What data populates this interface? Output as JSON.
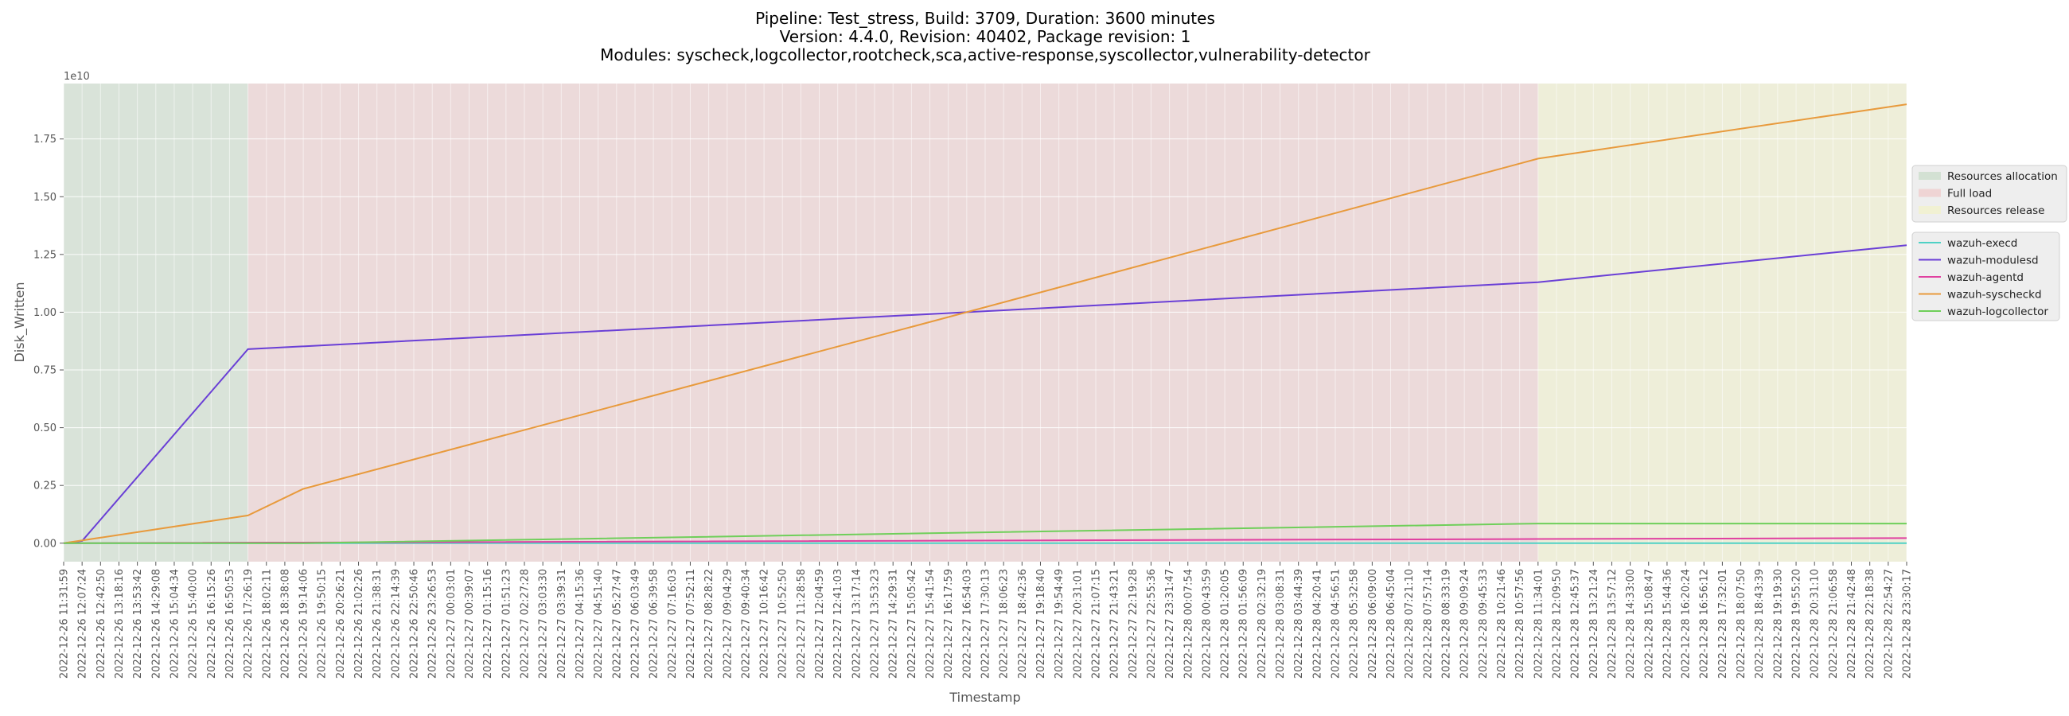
{
  "chart_data": {
    "type": "line",
    "title_lines": [
      "Pipeline: Test_stress, Build: 3709, Duration: 3600 minutes",
      "Version: 4.4.0, Revision: 40402, Package revision: 1",
      "Modules: syscheck,logcollector,rootcheck,sca,active-response,syscollector,vulnerability-detector"
    ],
    "xlabel": "Timestamp",
    "ylabel": "Disk_Written",
    "y_offset_label": "1e10",
    "ylim": [
      -0.08,
      1.99
    ],
    "y_ticks": [
      0.0,
      0.25,
      0.5,
      0.75,
      1.0,
      1.25,
      1.5,
      1.75
    ],
    "y_tick_labels": [
      "0.00",
      "0.25",
      "0.50",
      "0.75",
      "1.00",
      "1.25",
      "1.50",
      "1.75"
    ],
    "y_unit_scale": "1e10",
    "grid": true,
    "legend_placement": "right",
    "x_categories": [
      "2022-12-26 11:31:59",
      "2022-12-26 12:07:24",
      "2022-12-26 12:42:50",
      "2022-12-26 13:18:16",
      "2022-12-26 13:53:42",
      "2022-12-26 14:29:08",
      "2022-12-26 15:04:34",
      "2022-12-26 15:40:00",
      "2022-12-26 16:15:26",
      "2022-12-26 16:50:53",
      "2022-12-26 17:26:19",
      "2022-12-26 18:02:11",
      "2022-12-26 18:38:08",
      "2022-12-26 19:14:06",
      "2022-12-26 19:50:15",
      "2022-12-26 20:26:21",
      "2022-12-26 21:02:26",
      "2022-12-26 21:38:31",
      "2022-12-26 22:14:39",
      "2022-12-26 22:50:46",
      "2022-12-26 23:26:53",
      "2022-12-27 00:03:01",
      "2022-12-27 00:39:07",
      "2022-12-27 01:15:16",
      "2022-12-27 01:51:23",
      "2022-12-27 02:27:28",
      "2022-12-27 03:03:30",
      "2022-12-27 03:39:31",
      "2022-12-27 04:15:36",
      "2022-12-27 04:51:40",
      "2022-12-27 05:27:47",
      "2022-12-27 06:03:49",
      "2022-12-27 06:39:58",
      "2022-12-27 07:16:03",
      "2022-12-27 07:52:11",
      "2022-12-27 08:28:22",
      "2022-12-27 09:04:29",
      "2022-12-27 09:40:34",
      "2022-12-27 10:16:42",
      "2022-12-27 10:52:50",
      "2022-12-27 11:28:58",
      "2022-12-27 12:04:59",
      "2022-12-27 12:41:03",
      "2022-12-27 13:17:14",
      "2022-12-27 13:53:23",
      "2022-12-27 14:29:31",
      "2022-12-27 15:05:42",
      "2022-12-27 15:41:54",
      "2022-12-27 16:17:59",
      "2022-12-27 16:54:03",
      "2022-12-27 17:30:13",
      "2022-12-27 18:06:23",
      "2022-12-27 18:42:36",
      "2022-12-27 19:18:40",
      "2022-12-27 19:54:49",
      "2022-12-27 20:31:01",
      "2022-12-27 21:07:15",
      "2022-12-27 21:43:21",
      "2022-12-27 22:19:28",
      "2022-12-27 22:55:36",
      "2022-12-27 23:31:47",
      "2022-12-28 00:07:54",
      "2022-12-28 00:43:59",
      "2022-12-28 01:20:05",
      "2022-12-28 01:56:09",
      "2022-12-28 02:32:19",
      "2022-12-28 03:08:31",
      "2022-12-28 03:44:39",
      "2022-12-28 04:20:41",
      "2022-12-28 04:56:51",
      "2022-12-28 05:32:58",
      "2022-12-28 06:09:00",
      "2022-12-28 06:45:04",
      "2022-12-28 07:21:10",
      "2022-12-28 07:57:14",
      "2022-12-28 08:33:19",
      "2022-12-28 09:09:24",
      "2022-12-28 09:45:33",
      "2022-12-28 10:21:46",
      "2022-12-28 10:57:56",
      "2022-12-28 11:34:01",
      "2022-12-28 12:09:50",
      "2022-12-28 12:45:37",
      "2022-12-28 13:21:24",
      "2022-12-28 13:57:12",
      "2022-12-28 14:33:00",
      "2022-12-28 15:08:47",
      "2022-12-28 15:44:36",
      "2022-12-28 16:20:24",
      "2022-12-28 16:56:12",
      "2022-12-28 17:32:01",
      "2022-12-28 18:07:50",
      "2022-12-28 18:43:39",
      "2022-12-28 19:19:30",
      "2022-12-28 19:55:20",
      "2022-12-28 20:31:10",
      "2022-12-28 21:06:58",
      "2022-12-28 21:42:48",
      "2022-12-28 22:18:38",
      "2022-12-28 22:54:27",
      "2022-12-28 23:30:17"
    ],
    "phases": [
      {
        "name": "Resources allocation",
        "start_index": 0,
        "end_index": 10,
        "color": "#b7d3b7",
        "opacity": 0.35
      },
      {
        "name": "Full load",
        "start_index": 10,
        "end_index": 80,
        "color": "#f0b9b9",
        "opacity": 0.32
      },
      {
        "name": "Resources release",
        "start_index": 80,
        "end_index": 100,
        "color": "#f3f3b8",
        "opacity": 0.35
      }
    ],
    "series": [
      {
        "name": "wazuh-execd",
        "color": "#4fd1c5",
        "points": [
          [
            0,
            0.0
          ],
          [
            100,
            0.0
          ]
        ]
      },
      {
        "name": "wazuh-modulesd",
        "color": "#6a3fd6",
        "points": [
          [
            0,
            0.0
          ],
          [
            1,
            0.01
          ],
          [
            10,
            0.84
          ],
          [
            49,
            1.0
          ],
          [
            80,
            1.13
          ],
          [
            100,
            1.29
          ]
        ]
      },
      {
        "name": "wazuh-agentd",
        "color": "#e040a0",
        "points": [
          [
            0,
            0.0
          ],
          [
            80,
            0.018
          ],
          [
            100,
            0.022
          ]
        ]
      },
      {
        "name": "wazuh-syscheckd",
        "color": "#e89a3c",
        "points": [
          [
            0,
            0.0
          ],
          [
            10,
            0.12
          ],
          [
            13,
            0.235
          ],
          [
            49,
            1.0
          ],
          [
            80,
            1.665
          ],
          [
            100,
            1.9
          ]
        ]
      },
      {
        "name": "wazuh-logcollector",
        "color": "#6fcf5a",
        "points": [
          [
            0,
            0.0
          ],
          [
            13,
            0.0
          ],
          [
            80,
            0.085
          ],
          [
            100,
            0.085
          ]
        ]
      }
    ]
  }
}
